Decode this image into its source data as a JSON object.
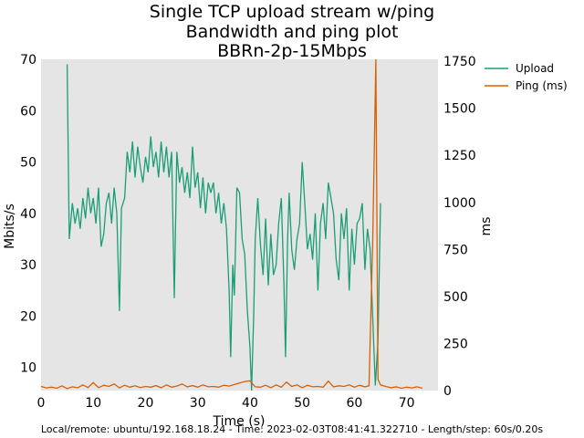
{
  "chart_data": {
    "type": "line",
    "title": "Single TCP upload stream w/ping",
    "subtitle": "Bandwidth and ping plot",
    "subtitle2": "BBRn-2p-15Mbps",
    "xlabel": "Time (s)",
    "ylabel_left": "Mbits/s",
    "ylabel_right": "ms",
    "xlim": [
      0,
      76
    ],
    "ylim_left": [
      5.5,
      70
    ],
    "ylim_right": [
      0,
      1760
    ],
    "x_ticks": [
      "0",
      "10",
      "20",
      "30",
      "40",
      "50",
      "60",
      "70"
    ],
    "y_left_ticks": [
      "10",
      "20",
      "30",
      "40",
      "50",
      "60",
      "70"
    ],
    "y_right_ticks": [
      "0",
      "250",
      "500",
      "750",
      "1000",
      "1250",
      "1500",
      "1750"
    ],
    "grid": false,
    "legend_position": "top-right",
    "series": [
      {
        "name": "Upload",
        "axis": "left",
        "color": "#1b9e77",
        "points": [
          [
            5,
            69
          ],
          [
            5.4,
            35
          ],
          [
            6,
            42
          ],
          [
            6.5,
            38
          ],
          [
            7,
            41
          ],
          [
            7.5,
            37
          ],
          [
            8,
            43
          ],
          [
            8.5,
            39
          ],
          [
            9,
            45
          ],
          [
            9.5,
            40
          ],
          [
            10,
            43
          ],
          [
            10.5,
            38
          ],
          [
            11,
            45
          ],
          [
            11.5,
            33.5
          ],
          [
            12,
            36
          ],
          [
            12.5,
            42
          ],
          [
            13,
            44
          ],
          [
            13.5,
            38
          ],
          [
            14,
            45
          ],
          [
            14.5,
            40
          ],
          [
            15,
            21
          ],
          [
            15.4,
            41
          ],
          [
            16,
            43
          ],
          [
            16.5,
            52
          ],
          [
            17,
            48
          ],
          [
            17.5,
            54
          ],
          [
            18,
            47
          ],
          [
            18.5,
            53
          ],
          [
            19,
            49
          ],
          [
            19.5,
            46
          ],
          [
            20,
            51
          ],
          [
            20.5,
            48
          ],
          [
            21,
            55
          ],
          [
            21.5,
            49
          ],
          [
            22,
            52
          ],
          [
            22.5,
            47
          ],
          [
            23,
            54
          ],
          [
            23.5,
            48
          ],
          [
            24,
            53
          ],
          [
            24.5,
            47
          ],
          [
            25,
            52
          ],
          [
            25.5,
            23.5
          ],
          [
            26,
            52
          ],
          [
            26.5,
            46
          ],
          [
            27,
            49
          ],
          [
            27.5,
            44
          ],
          [
            28,
            48
          ],
          [
            28.5,
            43
          ],
          [
            29,
            53
          ],
          [
            29.5,
            45
          ],
          [
            30,
            48
          ],
          [
            30.5,
            41
          ],
          [
            31,
            47
          ],
          [
            31.5,
            40
          ],
          [
            32,
            46
          ],
          [
            32.5,
            44
          ],
          [
            33,
            46
          ],
          [
            33.5,
            40
          ],
          [
            34,
            44
          ],
          [
            34.5,
            38
          ],
          [
            35,
            42
          ],
          [
            35.5,
            37
          ],
          [
            36,
            25
          ],
          [
            36.3,
            12
          ],
          [
            36.7,
            30
          ],
          [
            37,
            24
          ],
          [
            37.5,
            45
          ],
          [
            38,
            44
          ],
          [
            38.5,
            35
          ],
          [
            39,
            32
          ],
          [
            39.5,
            21
          ],
          [
            40,
            14
          ],
          [
            40.3,
            5.5
          ],
          [
            40.7,
            20
          ],
          [
            41,
            35
          ],
          [
            41.5,
            43
          ],
          [
            42,
            34
          ],
          [
            42.5,
            28
          ],
          [
            43,
            39
          ],
          [
            43.5,
            26
          ],
          [
            44,
            36
          ],
          [
            44.5,
            28
          ],
          [
            45,
            30
          ],
          [
            45.5,
            38
          ],
          [
            46,
            43
          ],
          [
            46.5,
            26
          ],
          [
            46.8,
            12
          ],
          [
            47.2,
            35
          ],
          [
            47.5,
            44
          ],
          [
            48,
            33
          ],
          [
            48.5,
            29
          ],
          [
            49,
            35
          ],
          [
            49.5,
            38
          ],
          [
            50,
            50
          ],
          [
            50.5,
            42
          ],
          [
            51,
            33
          ],
          [
            51.5,
            36
          ],
          [
            52,
            31
          ],
          [
            52.5,
            40
          ],
          [
            53,
            25
          ],
          [
            53.5,
            38
          ],
          [
            54,
            42
          ],
          [
            54.5,
            35
          ],
          [
            55,
            46
          ],
          [
            55.5,
            43
          ],
          [
            56,
            40
          ],
          [
            56.5,
            31
          ],
          [
            57,
            27
          ],
          [
            57.5,
            40
          ],
          [
            58,
            35
          ],
          [
            58.5,
            41
          ],
          [
            59,
            25
          ],
          [
            59.5,
            37
          ],
          [
            60,
            30
          ],
          [
            60.5,
            38
          ],
          [
            61,
            39
          ],
          [
            61.5,
            42
          ],
          [
            62,
            29
          ],
          [
            62.5,
            37
          ],
          [
            63,
            33
          ],
          [
            64,
            6.5
          ],
          [
            64.5,
            15
          ],
          [
            65,
            42
          ]
        ]
      },
      {
        "name": "Ping (ms)",
        "axis": "right",
        "color": "#d95f02",
        "points": [
          [
            0,
            22
          ],
          [
            1,
            14
          ],
          [
            2,
            18
          ],
          [
            3,
            12
          ],
          [
            4,
            25
          ],
          [
            5,
            10
          ],
          [
            6,
            20
          ],
          [
            7,
            15
          ],
          [
            8,
            30
          ],
          [
            9,
            16
          ],
          [
            10,
            42
          ],
          [
            11,
            15
          ],
          [
            12,
            28
          ],
          [
            13,
            22
          ],
          [
            14,
            35
          ],
          [
            15,
            14
          ],
          [
            16,
            28
          ],
          [
            17,
            18
          ],
          [
            18,
            25
          ],
          [
            19,
            16
          ],
          [
            20,
            22
          ],
          [
            21,
            18
          ],
          [
            22,
            26
          ],
          [
            23,
            15
          ],
          [
            24,
            30
          ],
          [
            25,
            18
          ],
          [
            26,
            24
          ],
          [
            27,
            35
          ],
          [
            28,
            20
          ],
          [
            29,
            26
          ],
          [
            30,
            18
          ],
          [
            31,
            30
          ],
          [
            32,
            20
          ],
          [
            33,
            22
          ],
          [
            34,
            18
          ],
          [
            35,
            28
          ],
          [
            36,
            24
          ],
          [
            37,
            32
          ],
          [
            38,
            40
          ],
          [
            39,
            48
          ],
          [
            40,
            52
          ],
          [
            41,
            20
          ],
          [
            42,
            18
          ],
          [
            43,
            28
          ],
          [
            44,
            15
          ],
          [
            45,
            30
          ],
          [
            46,
            18
          ],
          [
            47,
            45
          ],
          [
            48,
            22
          ],
          [
            49,
            30
          ],
          [
            50,
            15
          ],
          [
            51,
            28
          ],
          [
            52,
            20
          ],
          [
            53,
            22
          ],
          [
            54,
            18
          ],
          [
            55,
            50
          ],
          [
            56,
            20
          ],
          [
            57,
            25
          ],
          [
            58,
            22
          ],
          [
            59,
            30
          ],
          [
            60,
            18
          ],
          [
            61,
            28
          ],
          [
            62,
            20
          ],
          [
            62.8,
            25
          ],
          [
            63.5,
            800
          ],
          [
            64.1,
            1780
          ],
          [
            64.5,
            60
          ],
          [
            65,
            30
          ],
          [
            66,
            22
          ],
          [
            67,
            15
          ],
          [
            68,
            20
          ],
          [
            69,
            12
          ],
          [
            70,
            18
          ],
          [
            71,
            14
          ],
          [
            72,
            20
          ],
          [
            73,
            12
          ]
        ]
      }
    ]
  },
  "footer_text": "Local/remote: ubuntu/192.168.18.24 - Time: 2023-02-03T08:41:41.322710 - Length/step: 60s/0.20s"
}
